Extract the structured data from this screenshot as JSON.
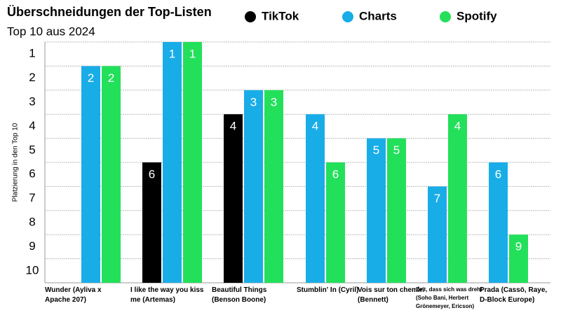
{
  "chart_data": {
    "type": "bar",
    "title": "Überschneidungen der Top-Listen",
    "subtitle": "Top 10 aus 2024",
    "y_label": "Platzierung in den Top 10",
    "categories": [
      "Wunder (Ayliva x Apache 207)",
      "I like the way you kiss me (Artemas)",
      "Beautiful Things (Benson Boone)",
      "Stumblin' In (Cyril)",
      "Vois sur ton chemin (Bennett)",
      "Zeit, dass sich was dreht (Soho Bani, Herbert Grönemeyer, Ericson)",
      "Prada (Cassö, Raye, D-Block Europe)"
    ],
    "series": [
      {
        "name": "TikTok",
        "color": "#000000",
        "values": [
          null,
          6,
          4,
          null,
          null,
          null,
          null
        ]
      },
      {
        "name": "Charts",
        "color": "#19ade8",
        "values": [
          2,
          1,
          3,
          4,
          5,
          7,
          6
        ]
      },
      {
        "name": "Spotify",
        "color": "#23e05b",
        "values": [
          2,
          1,
          3,
          6,
          5,
          4,
          9
        ]
      }
    ],
    "ylim": [
      1,
      11
    ],
    "yticks": [
      1,
      2,
      3,
      4,
      5,
      6,
      7,
      8,
      9,
      10
    ],
    "y_inverted": true,
    "grid": true,
    "legend": "top"
  }
}
